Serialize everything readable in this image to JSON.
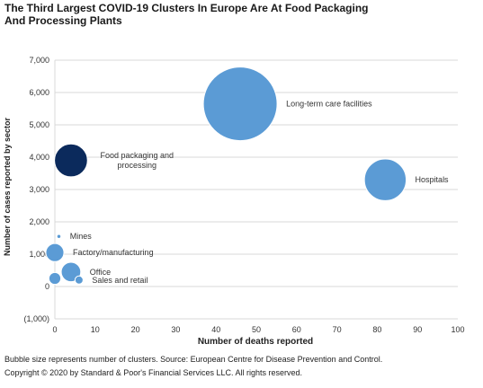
{
  "title": "The Third Largest COVID-19 Clusters In Europe Are At Food Packaging And Processing Plants",
  "footnote": "Bubble size represents number of clusters. Source: European Centre for Disease Prevention and Control.",
  "copyright": "Copyright © 2020 by Standard & Poor's Financial Services LLC. All rights reserved.",
  "colors": {
    "bubble": "#5b9bd5",
    "highlight": "#0b2a5c",
    "grid": "#d9d9d9",
    "text": "#333333"
  },
  "chart_data": {
    "type": "bubble",
    "xlabel": "Number of deaths reported",
    "ylabel": "Number of cases reported by sector",
    "xlim": [
      0,
      100
    ],
    "ylim": [
      -1000,
      7000
    ],
    "x_ticks": [
      0,
      10,
      20,
      30,
      40,
      50,
      60,
      70,
      80,
      90,
      100
    ],
    "y_ticks": [
      -1000,
      0,
      1000,
      2000,
      3000,
      4000,
      5000,
      6000,
      7000
    ],
    "y_tick_labels": [
      "(1,000)",
      "0",
      "1,000",
      "2,000",
      "3,000",
      "4,000",
      "5,000",
      "6,000",
      "7,000"
    ],
    "grid": "horizontal",
    "size_meaning": "number of clusters",
    "points": [
      {
        "label": "Long-term care facilities",
        "x": 46,
        "y": 5650,
        "size": 100,
        "highlight": false
      },
      {
        "label": "Hospitals",
        "x": 82,
        "y": 3300,
        "size": 32,
        "highlight": false
      },
      {
        "label": "Food packaging and processing",
        "x": 4,
        "y": 3900,
        "size": 20,
        "highlight": true
      },
      {
        "label": "Mines",
        "x": 1,
        "y": 1550,
        "size": 0.3,
        "highlight": false
      },
      {
        "label": "Factory/manufacturing",
        "x": 0,
        "y": 1050,
        "size": 6,
        "highlight": false
      },
      {
        "label": "Office",
        "x": 4,
        "y": 450,
        "size": 7,
        "highlight": false
      },
      {
        "label": "Sales and retail",
        "x": 6,
        "y": 200,
        "size": 1.2,
        "highlight": false
      },
      {
        "label": "",
        "x": 0,
        "y": 250,
        "size": 2.6,
        "highlight": false
      }
    ]
  }
}
